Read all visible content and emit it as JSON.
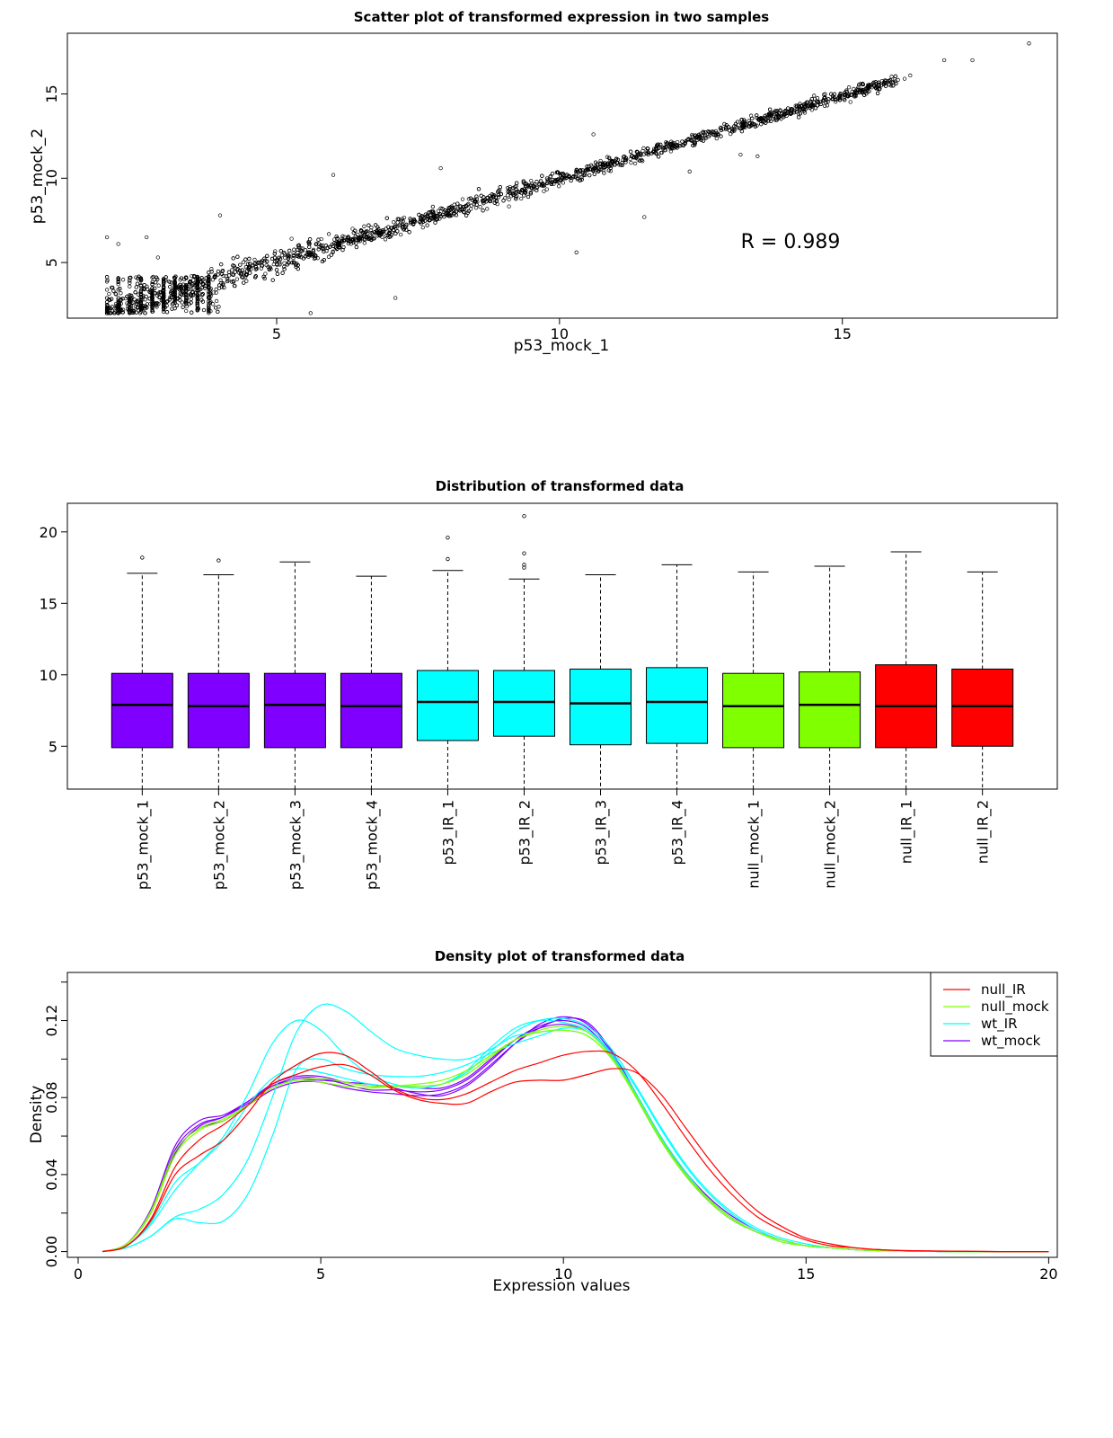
{
  "chart_data": [
    {
      "type": "scatter",
      "title": "Scatter plot of transformed expression in two samples",
      "xlabel": "p53_mock_1",
      "ylabel": "p53_mock_2",
      "xlim": [
        1.3,
        18.8
      ],
      "ylim": [
        1.7,
        18.6
      ],
      "xticks": [
        5,
        10,
        15
      ],
      "yticks": [
        5,
        10,
        15
      ],
      "annotation": "R = 0.989",
      "trend": {
        "slope": 0.985,
        "intercept": 0.12,
        "x_range": [
          2.0,
          16.0
        ]
      },
      "bulk_points_approx": 3000,
      "outliers": [
        [
          2.0,
          6.5
        ],
        [
          2.2,
          6.1
        ],
        [
          2.7,
          6.5
        ],
        [
          2.9,
          5.3
        ],
        [
          4.0,
          7.8
        ],
        [
          5.6,
          2.0
        ],
        [
          6.0,
          10.2
        ],
        [
          7.1,
          2.9
        ],
        [
          7.9,
          10.6
        ],
        [
          10.3,
          5.6
        ],
        [
          10.6,
          12.6
        ],
        [
          11.5,
          7.7
        ],
        [
          12.3,
          10.4
        ],
        [
          13.2,
          11.4
        ],
        [
          13.5,
          11.3
        ],
        [
          14.5,
          14.9
        ],
        [
          15.2,
          15.3
        ],
        [
          15.6,
          15.6
        ],
        [
          16.1,
          15.9
        ],
        [
          16.2,
          16.1
        ],
        [
          16.8,
          17.0
        ],
        [
          17.3,
          17.0
        ],
        [
          18.3,
          18.0
        ]
      ]
    },
    {
      "type": "box",
      "title": "Distribution of transformed data",
      "ylim": [
        2,
        22
      ],
      "yticks": [
        5,
        10,
        15,
        20
      ],
      "categories": [
        "p53_mock_1",
        "p53_mock_2",
        "p53_mock_3",
        "p53_mock_4",
        "p53_IR_1",
        "p53_IR_2",
        "p53_IR_3",
        "p53_IR_4",
        "null_mock_1",
        "null_mock_2",
        "null_IR_1",
        "null_IR_2"
      ],
      "colors": [
        "#8000ff",
        "#8000ff",
        "#8000ff",
        "#8000ff",
        "#00ffff",
        "#00ffff",
        "#00ffff",
        "#00ffff",
        "#80ff00",
        "#80ff00",
        "#ff0000",
        "#ff0000"
      ],
      "boxes": [
        {
          "min": 2.0,
          "q1": 4.9,
          "median": 7.9,
          "q3": 10.1,
          "max": 17.1,
          "outliers": [
            18.2
          ]
        },
        {
          "min": 2.0,
          "q1": 4.9,
          "median": 7.8,
          "q3": 10.1,
          "max": 17.0,
          "outliers": [
            18.0
          ]
        },
        {
          "min": 2.0,
          "q1": 4.9,
          "median": 7.9,
          "q3": 10.1,
          "max": 17.9,
          "outliers": []
        },
        {
          "min": 2.0,
          "q1": 4.9,
          "median": 7.8,
          "q3": 10.1,
          "max": 16.9,
          "outliers": []
        },
        {
          "min": 2.0,
          "q1": 5.4,
          "median": 8.1,
          "q3": 10.3,
          "max": 17.3,
          "outliers": [
            18.1,
            19.6
          ]
        },
        {
          "min": 2.0,
          "q1": 5.7,
          "median": 8.1,
          "q3": 10.3,
          "max": 16.7,
          "outliers": [
            17.5,
            17.7,
            18.5,
            21.1
          ]
        },
        {
          "min": 2.0,
          "q1": 5.1,
          "median": 8.0,
          "q3": 10.4,
          "max": 17.0,
          "outliers": []
        },
        {
          "min": 2.0,
          "q1": 5.2,
          "median": 8.1,
          "q3": 10.5,
          "max": 17.7,
          "outliers": []
        },
        {
          "min": 2.0,
          "q1": 4.9,
          "median": 7.8,
          "q3": 10.1,
          "max": 17.2,
          "outliers": []
        },
        {
          "min": 2.0,
          "q1": 4.9,
          "median": 7.9,
          "q3": 10.2,
          "max": 17.6,
          "outliers": []
        },
        {
          "min": 2.0,
          "q1": 4.9,
          "median": 7.8,
          "q3": 10.7,
          "max": 18.6,
          "outliers": []
        },
        {
          "min": 2.0,
          "q1": 5.0,
          "median": 7.8,
          "q3": 10.4,
          "max": 17.2,
          "outliers": []
        }
      ]
    },
    {
      "type": "line",
      "title": "Density plot of transformed data",
      "xlabel": "Expression values",
      "ylabel": "Density",
      "xlim": [
        0,
        20.4
      ],
      "ylim": [
        -0.003,
        0.145
      ],
      "xticks": [
        0,
        5,
        10,
        15,
        20
      ],
      "yticks": [
        0.0,
        0.04,
        0.08,
        0.12
      ],
      "ytick_labels": [
        "0.00",
        "0.04",
        "0.08",
        "0.12"
      ],
      "legend_position": "top-right",
      "legend": [
        {
          "name": "null_IR",
          "color": "#ff0000"
        },
        {
          "name": "null_mock",
          "color": "#80ff00"
        },
        {
          "name": "wt_IR",
          "color": "#00ffff"
        },
        {
          "name": "wt_mock",
          "color": "#8000ff"
        }
      ],
      "x": [
        0.5,
        1,
        1.5,
        2,
        2.5,
        3,
        3.5,
        4,
        4.5,
        5,
        5.5,
        6,
        6.5,
        7,
        7.5,
        8,
        8.5,
        9,
        9.5,
        10,
        10.5,
        11,
        11.5,
        12,
        12.5,
        13,
        13.5,
        14,
        14.5,
        15,
        15.5,
        16,
        16.5,
        17,
        18,
        19,
        20
      ],
      "series": [
        {
          "group": "wt_mock",
          "color": "#8000ff",
          "values": [
            0,
            0.004,
            0.022,
            0.055,
            0.068,
            0.071,
            0.078,
            0.086,
            0.089,
            0.089,
            0.088,
            0.087,
            0.085,
            0.082,
            0.081,
            0.086,
            0.096,
            0.108,
            0.118,
            0.122,
            0.118,
            0.103,
            0.082,
            0.06,
            0.042,
            0.028,
            0.018,
            0.011,
            0.006,
            0.003,
            0.002,
            0.001,
            0.0005,
            0.0003,
            0,
            0,
            0
          ]
        },
        {
          "group": "wt_mock",
          "color": "#8000ff",
          "values": [
            0,
            0.004,
            0.021,
            0.053,
            0.066,
            0.07,
            0.077,
            0.086,
            0.09,
            0.09,
            0.087,
            0.084,
            0.084,
            0.083,
            0.084,
            0.089,
            0.099,
            0.11,
            0.117,
            0.12,
            0.116,
            0.102,
            0.081,
            0.059,
            0.041,
            0.027,
            0.017,
            0.01,
            0.006,
            0.003,
            0.002,
            0.001,
            0.0005,
            0.0003,
            0,
            0,
            0
          ]
        },
        {
          "group": "wt_mock",
          "color": "#8000ff",
          "values": [
            0,
            0.004,
            0.02,
            0.051,
            0.065,
            0.07,
            0.078,
            0.087,
            0.091,
            0.091,
            0.088,
            0.086,
            0.086,
            0.085,
            0.085,
            0.09,
            0.1,
            0.11,
            0.116,
            0.118,
            0.114,
            0.101,
            0.08,
            0.058,
            0.04,
            0.026,
            0.016,
            0.01,
            0.006,
            0.003,
            0.002,
            0.001,
            0.0005,
            0.0003,
            0,
            0,
            0
          ]
        },
        {
          "group": "wt_mock",
          "color": "#8000ff",
          "values": [
            0,
            0.004,
            0.021,
            0.052,
            0.064,
            0.068,
            0.076,
            0.084,
            0.088,
            0.088,
            0.085,
            0.083,
            0.082,
            0.081,
            0.082,
            0.087,
            0.097,
            0.108,
            0.116,
            0.121,
            0.119,
            0.104,
            0.082,
            0.06,
            0.041,
            0.027,
            0.017,
            0.01,
            0.006,
            0.003,
            0.002,
            0.001,
            0.0005,
            0.0003,
            0,
            0,
            0
          ]
        },
        {
          "group": "wt_IR",
          "color": "#00ffff",
          "values": [
            0,
            0.002,
            0.008,
            0.018,
            0.022,
            0.03,
            0.048,
            0.08,
            0.114,
            0.128,
            0.125,
            0.115,
            0.106,
            0.102,
            0.1,
            0.1,
            0.105,
            0.112,
            0.114,
            0.115,
            0.112,
            0.1,
            0.08,
            0.058,
            0.04,
            0.026,
            0.016,
            0.01,
            0.005,
            0.003,
            0.002,
            0.001,
            0.0005,
            0.0003,
            0,
            0,
            0
          ]
        },
        {
          "group": "wt_IR",
          "color": "#00ffff",
          "values": [
            0,
            0.002,
            0.008,
            0.017,
            0.015,
            0.016,
            0.03,
            0.06,
            0.095,
            0.1,
            0.095,
            0.092,
            0.091,
            0.091,
            0.093,
            0.097,
            0.103,
            0.108,
            0.112,
            0.116,
            0.114,
            0.102,
            0.082,
            0.06,
            0.042,
            0.027,
            0.017,
            0.01,
            0.006,
            0.003,
            0.002,
            0.001,
            0.0005,
            0.0003,
            0,
            0,
            0
          ]
        },
        {
          "group": "wt_IR",
          "color": "#00ffff",
          "values": [
            0,
            0.003,
            0.014,
            0.032,
            0.046,
            0.06,
            0.082,
            0.108,
            0.12,
            0.115,
            0.102,
            0.092,
            0.087,
            0.085,
            0.087,
            0.094,
            0.106,
            0.116,
            0.12,
            0.119,
            0.115,
            0.103,
            0.085,
            0.064,
            0.045,
            0.03,
            0.019,
            0.011,
            0.006,
            0.003,
            0.002,
            0.001,
            0.0005,
            0.0003,
            0,
            0,
            0
          ]
        },
        {
          "group": "wt_IR",
          "color": "#00ffff",
          "values": [
            0,
            0.003,
            0.015,
            0.036,
            0.046,
            0.058,
            0.076,
            0.09,
            0.095,
            0.093,
            0.09,
            0.087,
            0.086,
            0.085,
            0.087,
            0.093,
            0.104,
            0.114,
            0.12,
            0.121,
            0.117,
            0.105,
            0.086,
            0.065,
            0.046,
            0.031,
            0.02,
            0.012,
            0.007,
            0.004,
            0.002,
            0.001,
            0.0005,
            0.0003,
            0,
            0,
            0
          ]
        },
        {
          "group": "null_mock",
          "color": "#80ff00",
          "values": [
            0,
            0.004,
            0.02,
            0.05,
            0.063,
            0.068,
            0.076,
            0.085,
            0.089,
            0.09,
            0.088,
            0.086,
            0.086,
            0.086,
            0.087,
            0.092,
            0.101,
            0.11,
            0.115,
            0.117,
            0.114,
            0.101,
            0.081,
            0.059,
            0.041,
            0.027,
            0.017,
            0.01,
            0.006,
            0.003,
            0.002,
            0.001,
            0.0005,
            0.0003,
            0,
            0,
            0
          ]
        },
        {
          "group": "null_mock",
          "color": "#80ff00",
          "values": [
            0,
            0.004,
            0.021,
            0.052,
            0.064,
            0.069,
            0.076,
            0.085,
            0.089,
            0.088,
            0.086,
            0.085,
            0.086,
            0.087,
            0.089,
            0.094,
            0.102,
            0.11,
            0.114,
            0.115,
            0.112,
            0.1,
            0.08,
            0.058,
            0.04,
            0.026,
            0.016,
            0.01,
            0.005,
            0.003,
            0.002,
            0.001,
            0.0005,
            0.0003,
            0,
            0,
            0
          ]
        },
        {
          "group": "null_IR",
          "color": "#ff0000",
          "values": [
            0,
            0.003,
            0.016,
            0.04,
            0.05,
            0.058,
            0.072,
            0.088,
            0.097,
            0.103,
            0.102,
            0.094,
            0.085,
            0.08,
            0.079,
            0.082,
            0.088,
            0.094,
            0.098,
            0.102,
            0.104,
            0.103,
            0.094,
            0.078,
            0.06,
            0.043,
            0.029,
            0.018,
            0.011,
            0.006,
            0.003,
            0.002,
            0.001,
            0.0005,
            0.0002,
            0,
            0
          ]
        },
        {
          "group": "null_IR",
          "color": "#ff0000",
          "values": [
            0,
            0.003,
            0.017,
            0.044,
            0.058,
            0.066,
            0.076,
            0.087,
            0.092,
            0.096,
            0.097,
            0.092,
            0.084,
            0.079,
            0.077,
            0.077,
            0.083,
            0.088,
            0.089,
            0.089,
            0.092,
            0.095,
            0.093,
            0.082,
            0.065,
            0.048,
            0.033,
            0.021,
            0.013,
            0.007,
            0.004,
            0.002,
            0.001,
            0.0005,
            0.0002,
            0,
            0
          ]
        }
      ]
    }
  ]
}
